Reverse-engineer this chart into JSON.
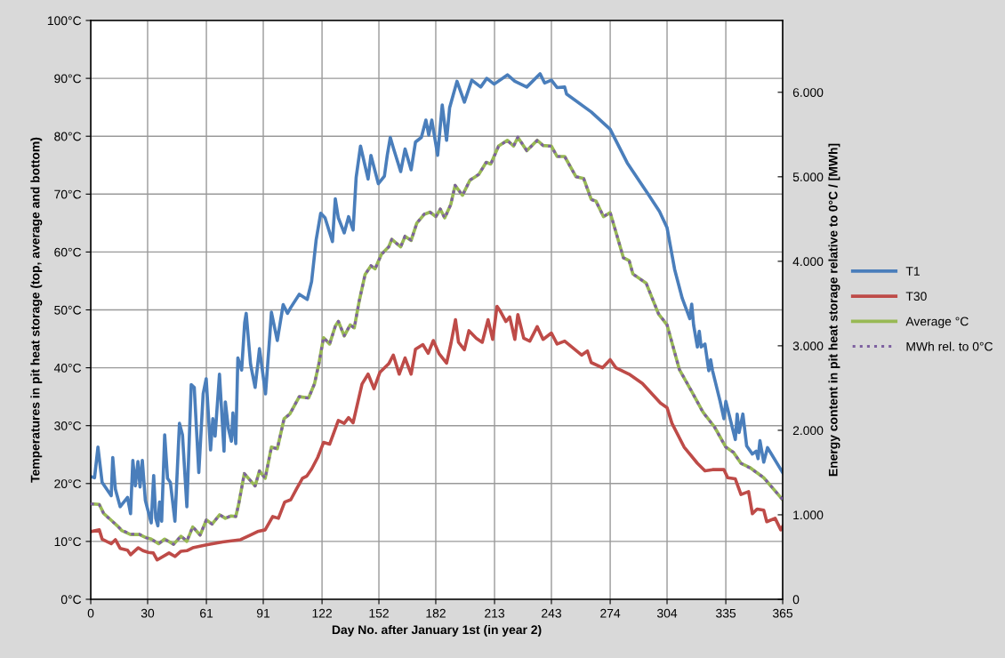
{
  "chart_data": {
    "type": "line",
    "xlabel": "Day No. after January 1st (in year 2)",
    "ylabel": "Temperatures in pit heat storage (top, average and bottom)",
    "y2label": "Energy content in pit heat storage relative to 0°C / [MWh]",
    "xlim": [
      0,
      365
    ],
    "xticks": [
      0,
      30,
      61,
      91,
      122,
      152,
      182,
      213,
      243,
      274,
      304,
      335,
      365
    ],
    "ylim": [
      0,
      100
    ],
    "yticks": [
      {
        "value": 0,
        "label": "0°C"
      },
      {
        "value": 10,
        "label": "10°C"
      },
      {
        "value": 20,
        "label": "20°C"
      },
      {
        "value": 30,
        "label": "30°C"
      },
      {
        "value": 40,
        "label": "40°C"
      },
      {
        "value": 50,
        "label": "50°C"
      },
      {
        "value": 60,
        "label": "60°C"
      },
      {
        "value": 70,
        "label": "70°C"
      },
      {
        "value": 80,
        "label": "80°C"
      },
      {
        "value": 90,
        "label": "90°C"
      },
      {
        "value": 100,
        "label": "100°C"
      }
    ],
    "y2lim": [
      0,
      6850
    ],
    "y2ticks": [
      0,
      {
        "value": 1000,
        "label": "1.000"
      },
      {
        "value": 2000,
        "label": "2.000"
      },
      {
        "value": 3000,
        "label": "3.000"
      },
      {
        "value": 4000,
        "label": "4.000"
      },
      {
        "value": 5000,
        "label": "5.000"
      },
      {
        "value": 6000,
        "label": "6.000"
      }
    ],
    "grid": true,
    "legend": "right",
    "series": [
      {
        "name": "T1",
        "color": "#4a7ebb",
        "line_style": "solid",
        "x": [
          0,
          2,
          3.8,
          6,
          10.8,
          11.6,
          13,
          15.5,
          19.4,
          21,
          22.2,
          23.5,
          24.9,
          26,
          27.2,
          28.8,
          31.9,
          33.2,
          34.3,
          35.4,
          36.3,
          37.4,
          39,
          40.5,
          42,
          44.4,
          46.8,
          48.4,
          50.7,
          53,
          54.6,
          57,
          59.3,
          60.9,
          63.2,
          64.4,
          65.6,
          67.9,
          70.3,
          71,
          72.6,
          74.2,
          75,
          76.5,
          77.6,
          79.6,
          81.2,
          82,
          84.3,
          86.7,
          89,
          92.2,
          94.5,
          95.3,
          98.4,
          101.5,
          103.8,
          105.5,
          110,
          114.2,
          116.5,
          118.9,
          121.3,
          123.6,
          127.5,
          129,
          130.6,
          133.7,
          136,
          138.4,
          140,
          142.3,
          146.3,
          147.8,
          151.7,
          154.9,
          156.4,
          158,
          159.6,
          163.5,
          165.8,
          169,
          171.3,
          174.4,
          176.8,
          178.3,
          179.9,
          183,
          185.4,
          187.7,
          189.3,
          193.2,
          197.1,
          201,
          205.7,
          208.9,
          212.8,
          219.8,
          223.7,
          230,
          237,
          239.4,
          243,
          246,
          250,
          251,
          264,
          274,
          283,
          294,
          300,
          304,
          308,
          312,
          316,
          317,
          318,
          320,
          321,
          322,
          324,
          326,
          327,
          328,
          332,
          334,
          335,
          340,
          341,
          342,
          344,
          346,
          349,
          351,
          352,
          353,
          355,
          357,
          365
        ],
        "values": [
          21.2,
          21.0,
          26.3,
          20.2,
          17.9,
          24.5,
          19.0,
          16.0,
          17.6,
          14.8,
          24.0,
          19.6,
          23.8,
          19.4,
          24.0,
          17.1,
          13.2,
          21.4,
          14.0,
          12.7,
          16.8,
          13.5,
          28.4,
          20.9,
          20.2,
          13.5,
          30.4,
          28.4,
          16.0,
          37.1,
          36.6,
          21.9,
          35.5,
          38.1,
          25.8,
          31.2,
          28.2,
          38.9,
          25.6,
          34.1,
          29.5,
          27.3,
          32.2,
          26.9,
          41.7,
          39.6,
          47.8,
          49.4,
          40.6,
          36.6,
          43.3,
          35.5,
          45.8,
          49.6,
          44.7,
          50.9,
          49.4,
          50.4,
          52.7,
          51.8,
          54.9,
          62.1,
          66.7,
          65.9,
          61.8,
          69.2,
          65.9,
          63.3,
          66.1,
          63.8,
          72.9,
          78.3,
          72.6,
          76.7,
          71.8,
          73.1,
          76.7,
          79.8,
          78.0,
          73.9,
          77.8,
          74.2,
          79.0,
          79.8,
          82.8,
          80.2,
          82.8,
          76.7,
          85.4,
          79.3,
          84.9,
          89.5,
          85.9,
          89.7,
          88.5,
          90.0,
          89.0,
          90.6,
          89.5,
          88.5,
          90.8,
          89.2,
          89.7,
          88.4,
          88.5,
          87.3,
          84.2,
          81.2,
          75.4,
          70.0,
          67.0,
          64.2,
          57.0,
          52.0,
          48.5,
          51.0,
          47.4,
          43.6,
          46.3,
          43.6,
          44.1,
          39.5,
          41.4,
          39.5,
          34.2,
          31.2,
          34.2,
          27.6,
          32.0,
          28.8,
          32.0,
          26.5,
          25.1,
          25.6,
          24.3,
          27.4,
          23.7,
          26.2,
          21.9
        ]
      },
      {
        "name": "T30",
        "color": "#be4b48",
        "line_style": "solid",
        "x": [
          0,
          4.5,
          6,
          10.8,
          13,
          15.5,
          19.4,
          21,
          25,
          27.5,
          30.4,
          33,
          35,
          41.3,
          44.4,
          47.6,
          50.7,
          53.8,
          61,
          69.5,
          79,
          83.6,
          88,
          92,
          96,
          99,
          102.3,
          105.5,
          108.6,
          111.7,
          114,
          116.5,
          119.7,
          122.8,
          126,
          130.6,
          133.7,
          136,
          138.4,
          143.1,
          146.3,
          149.4,
          152.5,
          157.2,
          159.6,
          162.7,
          165.8,
          169,
          171.3,
          175.2,
          178,
          180.7,
          183.8,
          187.7,
          190,
          192.4,
          194,
          197.1,
          199.5,
          203.4,
          206.5,
          209.6,
          212,
          214.3,
          216,
          219,
          221,
          223.7,
          225.3,
          228.4,
          231.6,
          235.5,
          238.6,
          243,
          246,
          250,
          259,
          262,
          264,
          270,
          274,
          277,
          284,
          291,
          300.5,
          304,
          306.6,
          313,
          320,
          324,
          328,
          334,
          336,
          340,
          343,
          347,
          349,
          351.5,
          355,
          356.6,
          361,
          364,
          365
        ],
        "values": [
          11.7,
          12.0,
          10.4,
          9.6,
          10.3,
          8.8,
          8.5,
          7.7,
          8.9,
          8.4,
          8.1,
          8.0,
          6.8,
          8.0,
          7.4,
          8.3,
          8.4,
          8.9,
          9.4,
          9.9,
          10.3,
          11.0,
          11.7,
          12.0,
          14.3,
          14.0,
          16.8,
          17.2,
          19.1,
          20.9,
          21.3,
          22.5,
          24.5,
          27.1,
          26.8,
          30.9,
          30.4,
          31.4,
          30.5,
          37.2,
          38.9,
          36.4,
          39.2,
          40.7,
          42.2,
          38.9,
          41.7,
          38.9,
          43.2,
          44.0,
          42.5,
          44.7,
          42.4,
          40.8,
          44.2,
          48.3,
          44.4,
          43.1,
          46.4,
          45.1,
          44.4,
          48.3,
          44.9,
          50.6,
          49.8,
          48.0,
          48.8,
          44.9,
          49.2,
          45.1,
          44.6,
          47.1,
          44.9,
          46.0,
          44.1,
          44.6,
          42.2,
          42.9,
          40.9,
          40.0,
          41.4,
          40.0,
          38.9,
          37.3,
          33.9,
          33.1,
          30.4,
          26.3,
          23.5,
          22.2,
          22.4,
          22.4,
          21.0,
          20.8,
          18.1,
          18.6,
          14.8,
          15.6,
          15.4,
          13.4,
          14.0,
          12.0,
          12.6
        ]
      },
      {
        "name": "Average °C",
        "color": "#98b954",
        "line_style": "solid",
        "x": [
          0,
          4.5,
          6.9,
          10,
          14,
          16.3,
          21,
          25.7,
          28.8,
          31.9,
          35.8,
          39,
          43.7,
          47.6,
          50.7,
          53.8,
          57.7,
          61,
          64,
          68,
          71,
          74,
          76.5,
          78,
          81,
          86.7,
          89,
          92,
          95.3,
          98.4,
          102,
          105,
          110,
          114.9,
          118,
          120.4,
          122.8,
          126,
          129,
          130.6,
          133.7,
          136.9,
          139,
          141.6,
          144.7,
          147.8,
          150,
          153.3,
          157.2,
          158.8,
          163.5,
          165.8,
          169,
          172,
          175.9,
          179,
          182,
          184.4,
          186.7,
          189.9,
          192.2,
          196.1,
          200,
          204.7,
          208.6,
          211,
          215.1,
          219.8,
          223,
          225.3,
          230,
          235.5,
          238.6,
          243,
          246,
          250,
          256,
          260,
          264,
          266.5,
          270.5,
          274,
          281,
          284,
          286,
          293,
          299.5,
          304,
          310.5,
          316.5,
          323,
          329,
          335,
          339,
          343,
          348,
          355,
          365
        ],
        "values": [
          16.5,
          16.4,
          14.8,
          13.9,
          12.7,
          11.9,
          11.2,
          11.2,
          10.7,
          10.4,
          9.6,
          10.4,
          9.5,
          10.9,
          10.0,
          12.5,
          11.1,
          13.7,
          13.0,
          14.6,
          14.0,
          14.4,
          14.3,
          16.4,
          21.7,
          19.6,
          22.2,
          20.9,
          26.3,
          26.0,
          31.2,
          32.0,
          35.0,
          34.8,
          37.2,
          40.8,
          45.2,
          44.1,
          47.2,
          48.0,
          45.5,
          47.4,
          46.9,
          51.5,
          56.1,
          57.6,
          57.1,
          59.6,
          60.9,
          62.2,
          60.9,
          62.7,
          62.0,
          65.0,
          66.5,
          66.9,
          66.1,
          67.4,
          65.9,
          68.2,
          71.5,
          69.8,
          72.4,
          73.4,
          75.5,
          75.2,
          78.3,
          79.3,
          78.3,
          79.8,
          77.5,
          79.3,
          78.4,
          78.3,
          76.5,
          76.5,
          73.0,
          72.7,
          69.1,
          68.8,
          66.1,
          66.8,
          59.0,
          58.5,
          56.2,
          54.6,
          49.3,
          47.4,
          39.7,
          36.2,
          32.3,
          29.8,
          26.3,
          25.4,
          23.5,
          22.7,
          21.0,
          17.2
        ]
      },
      {
        "name": "MWh rel. to 0°C",
        "color": "#7d60a0",
        "line_style": "dotted",
        "axis": "y2",
        "x": [
          0,
          4.5,
          6.9,
          10,
          14,
          16.3,
          21,
          25.7,
          28.8,
          31.9,
          35.8,
          39,
          43.7,
          47.6,
          50.7,
          53.8,
          57.7,
          61,
          64,
          68,
          71,
          74,
          76.5,
          78,
          81,
          86.7,
          89,
          92,
          95.3,
          98.4,
          102,
          105,
          110,
          114.9,
          118,
          120.4,
          122.8,
          126,
          129,
          130.6,
          133.7,
          136.9,
          139,
          141.6,
          144.7,
          147.8,
          150,
          153.3,
          157.2,
          158.8,
          163.5,
          165.8,
          169,
          172,
          175.9,
          179,
          182,
          184.4,
          186.7,
          189.9,
          192.2,
          196.1,
          200,
          204.7,
          208.6,
          211,
          215.1,
          219.8,
          223,
          225.3,
          230,
          235.5,
          238.6,
          243,
          246,
          250,
          256,
          260,
          264,
          266.5,
          270.5,
          274,
          281,
          284,
          286,
          293,
          299.5,
          304,
          310.5,
          316.5,
          323,
          329,
          335,
          339,
          343,
          348,
          355,
          365
        ],
        "values": [
          1130,
          1120,
          1010,
          950,
          870,
          820,
          770,
          770,
          730,
          710,
          660,
          710,
          650,
          750,
          690,
          860,
          760,
          940,
          890,
          1000,
          960,
          990,
          980,
          1120,
          1490,
          1340,
          1520,
          1430,
          1800,
          1780,
          2140,
          2190,
          2400,
          2380,
          2550,
          2790,
          3100,
          3020,
          3230,
          3290,
          3120,
          3250,
          3210,
          3530,
          3840,
          3950,
          3910,
          4080,
          4170,
          4260,
          4170,
          4300,
          4250,
          4450,
          4560,
          4580,
          4530,
          4620,
          4510,
          4670,
          4900,
          4780,
          4960,
          5030,
          5170,
          5150,
          5360,
          5430,
          5360,
          5470,
          5310,
          5430,
          5370,
          5360,
          5240,
          5240,
          5000,
          4980,
          4730,
          4710,
          4530,
          4580,
          4040,
          4010,
          3850,
          3740,
          3380,
          3250,
          2720,
          2480,
          2210,
          2040,
          1800,
          1740,
          1610,
          1550,
          1440,
          1180
        ]
      }
    ]
  }
}
